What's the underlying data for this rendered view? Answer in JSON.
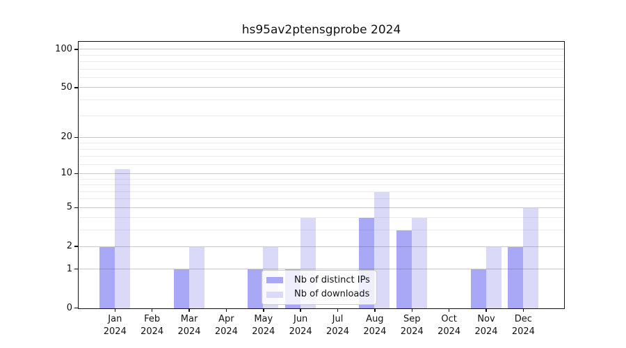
{
  "title": "hs95av2ptensgprobe 2024",
  "chart_data": {
    "type": "bar",
    "title": "hs95av2ptensgprobe 2024",
    "x_tick_months": [
      "Jan",
      "Feb",
      "Mar",
      "Apr",
      "May",
      "Jun",
      "Jul",
      "Aug",
      "Sep",
      "Oct",
      "Nov",
      "Dec"
    ],
    "x_tick_year": "2024",
    "series": [
      {
        "name": "Nb of distinct IPs",
        "color": "#a8a8f6",
        "values": [
          2,
          0,
          1,
          0,
          1,
          1,
          0,
          4,
          3,
          0,
          1,
          2
        ]
      },
      {
        "name": "Nb of downloads",
        "color": "#dadaf8",
        "values": [
          11,
          0,
          2,
          0,
          2,
          4,
          0,
          7,
          4,
          0,
          2,
          5
        ]
      }
    ],
    "y_axis": {
      "scale": "log1p",
      "ticks": [
        0,
        1,
        2,
        5,
        10,
        20,
        50,
        100
      ],
      "minor_ticks": [
        3,
        4,
        6,
        7,
        8,
        9,
        12,
        14,
        16,
        18,
        30,
        40,
        60,
        70,
        80,
        90
      ],
      "top_value": 114
    },
    "grid": "horizontal, major and minor, drawn over bars",
    "legend": {
      "position": "lower center",
      "entries": [
        "Nb of distinct IPs",
        "Nb of downloads"
      ]
    }
  }
}
